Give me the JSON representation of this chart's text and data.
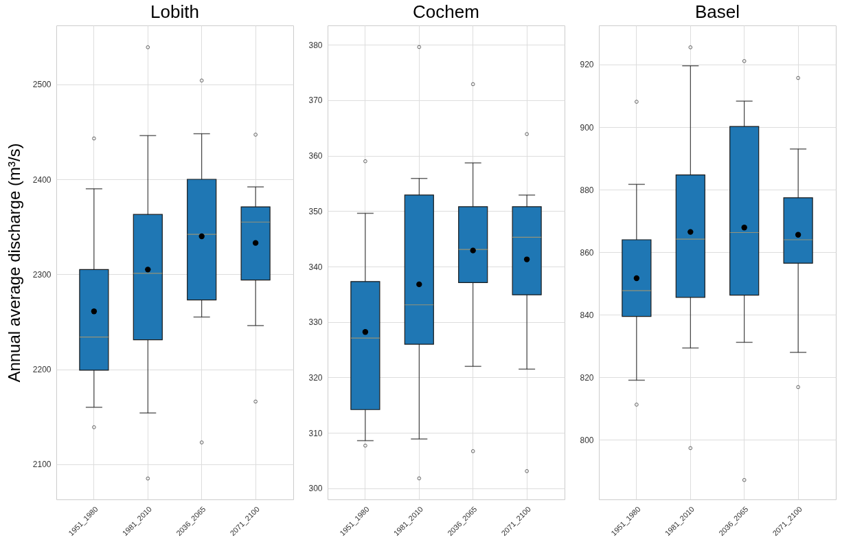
{
  "chart_data": [
    {
      "type": "box",
      "title": "Lobith",
      "ylabel": "Annual average discharge (m³/s)",
      "categories": [
        "1951_1980",
        "1981_2010",
        "2036_2065",
        "2071_2100"
      ],
      "color": "#1f77b4",
      "grid": true,
      "ylim": [
        2063,
        2562
      ],
      "yticks": [
        2100,
        2200,
        2300,
        2400,
        2500
      ],
      "boxes": [
        {
          "low": 2160,
          "q1": 2199,
          "median": 2234,
          "q3": 2305,
          "high": 2390,
          "mean": 2261,
          "outliers": [
            2443,
            2139
          ]
        },
        {
          "low": 2154,
          "q1": 2231,
          "median": 2301,
          "q3": 2363,
          "high": 2446,
          "mean": 2305,
          "outliers": [
            2539,
            2085
          ]
        },
        {
          "low": 2255,
          "q1": 2273,
          "median": 2342,
          "q3": 2400,
          "high": 2448,
          "mean": 2340,
          "outliers": [
            2504,
            2123
          ]
        },
        {
          "low": 2246,
          "q1": 2294,
          "median": 2355,
          "q3": 2371,
          "high": 2392,
          "mean": 2333,
          "outliers": [
            2447,
            2166
          ]
        }
      ]
    },
    {
      "type": "box",
      "title": "Cochem",
      "categories": [
        "1951_1980",
        "1981_2010",
        "2036_2065",
        "2071_2100"
      ],
      "color": "#1f77b4",
      "grid": true,
      "ylim": [
        298,
        383.5
      ],
      "yticks": [
        300,
        310,
        320,
        330,
        340,
        350,
        360,
        370,
        380
      ],
      "boxes": [
        {
          "low": 308.6,
          "q1": 314.2,
          "median": 327.1,
          "q3": 337.3,
          "high": 349.6,
          "mean": 328.2,
          "outliers": [
            359.0,
            307.7
          ]
        },
        {
          "low": 308.9,
          "q1": 326.0,
          "median": 333.1,
          "q3": 352.9,
          "high": 355.9,
          "mean": 336.8,
          "outliers": [
            379.6,
            301.8
          ]
        },
        {
          "low": 322.0,
          "q1": 337.1,
          "median": 343.1,
          "q3": 350.8,
          "high": 358.7,
          "mean": 342.9,
          "outliers": [
            372.9,
            306.7
          ]
        },
        {
          "low": 321.5,
          "q1": 334.9,
          "median": 345.3,
          "q3": 350.8,
          "high": 352.9,
          "mean": 341.3,
          "outliers": [
            363.9,
            303.1
          ]
        }
      ]
    },
    {
      "type": "box",
      "title": "Basel",
      "categories": [
        "1951_1980",
        "1981_2010",
        "2036_2065",
        "2071_2100"
      ],
      "color": "#1f77b4",
      "grid": true,
      "ylim": [
        781,
        932.5
      ],
      "yticks": [
        800,
        820,
        840,
        860,
        880,
        900,
        920
      ],
      "boxes": [
        {
          "low": 819.1,
          "q1": 839.5,
          "median": 847.7,
          "q3": 864.0,
          "high": 881.7,
          "mean": 851.7,
          "outliers": [
            908.1,
            811.3
          ]
        },
        {
          "low": 829.4,
          "q1": 845.6,
          "median": 864.2,
          "q3": 884.7,
          "high": 919.6,
          "mean": 866.5,
          "outliers": [
            925.5,
            797.4
          ]
        },
        {
          "low": 831.2,
          "q1": 846.3,
          "median": 866.3,
          "q3": 900.2,
          "high": 908.3,
          "mean": 867.9,
          "outliers": [
            921.1,
            787.2
          ]
        },
        {
          "low": 828.0,
          "q1": 856.5,
          "median": 864.0,
          "q3": 877.4,
          "high": 893.0,
          "mean": 865.6,
          "outliers": [
            915.7,
            816.9
          ]
        }
      ]
    }
  ]
}
